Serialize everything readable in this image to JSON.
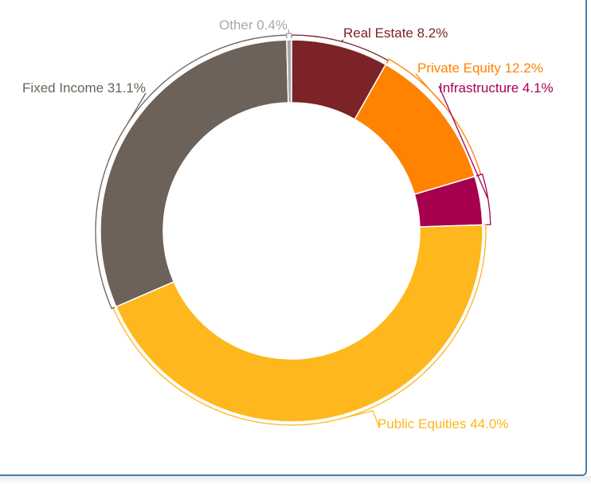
{
  "chart_data": {
    "type": "pie",
    "variant": "donut",
    "title": "",
    "legend": "none",
    "slices": [
      {
        "label": "Real Estate 8.2%",
        "value": 8.2,
        "color": "#7b2327"
      },
      {
        "label": "Private Equity 12.2%",
        "value": 12.2,
        "color": "#ff8200"
      },
      {
        "label": "Infrastructure 4.1%",
        "value": 4.1,
        "color": "#a6004f"
      },
      {
        "label": "Public Equities 44.0%",
        "value": 44.0,
        "color": "#feb71c"
      },
      {
        "label": "Fixed Income 31.1%",
        "value": 31.1,
        "color": "#6c6259"
      },
      {
        "label": "Other 0.4%",
        "value": 0.4,
        "color": "#a7a8aa"
      }
    ]
  }
}
